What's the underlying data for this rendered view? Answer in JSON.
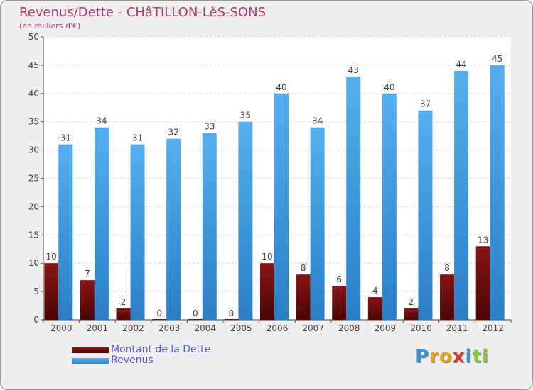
{
  "title": "Revenus/Dette - CHâTILLON-LèS-SONS",
  "subtitle": "(en milliers d'€)",
  "logo": {
    "text": "Proxiti",
    "letters": [
      {
        "ch": "P",
        "color": "#3d8fd6"
      },
      {
        "ch": "r",
        "color": "#e8a21b"
      },
      {
        "ch": "o",
        "color": "#e8a21b"
      },
      {
        "ch": "x",
        "color": "#d83b2b"
      },
      {
        "ch": "i",
        "color": "#3d8fd6"
      },
      {
        "ch": "t",
        "color": "#8cc63f"
      },
      {
        "ch": "i",
        "color": "#8cc63f"
      }
    ]
  },
  "chart_data": {
    "type": "bar",
    "categories": [
      "2000",
      "2001",
      "2002",
      "2003",
      "2004",
      "2005",
      "2006",
      "2007",
      "2008",
      "2009",
      "2010",
      "2011",
      "2012"
    ],
    "series": [
      {
        "name": "Montant de la Dette",
        "color": "#7a0f0f",
        "values": [
          10,
          7,
          2,
          0,
          0,
          0,
          10,
          8,
          6,
          4,
          2,
          8,
          13
        ]
      },
      {
        "name": "Revenus",
        "color": "#3d98de",
        "values": [
          31,
          34,
          31,
          32,
          33,
          35,
          40,
          34,
          43,
          40,
          37,
          44,
          45
        ]
      }
    ],
    "ylim": [
      0,
      50
    ],
    "yticks": [
      0,
      5,
      10,
      15,
      20,
      25,
      30,
      35,
      40,
      45,
      50
    ],
    "grid": true,
    "legend": "bottom-left"
  }
}
